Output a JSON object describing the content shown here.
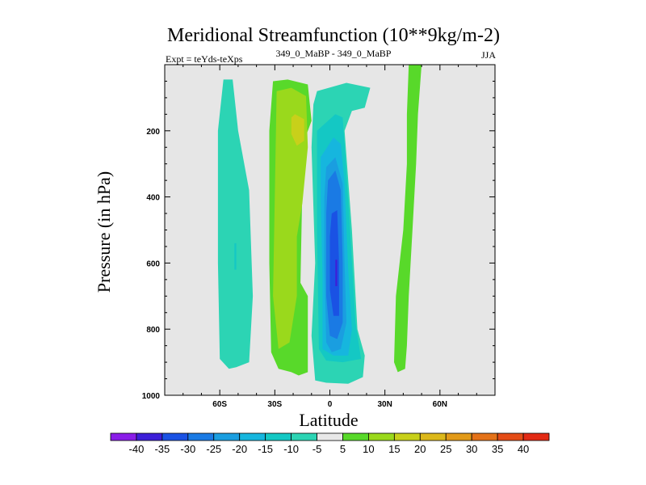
{
  "chart_data": {
    "type": "contour",
    "title": "Meridional Streamfunction (10**9kg/m-2)",
    "subtitle_left": "Expt = teYds-teXps",
    "subtitle_center": "349_0_MaBP - 349_0_MaBP",
    "subtitle_right": "JJA",
    "xlabel": "Latitude",
    "ylabel": "Pressure (in hPa)",
    "xlim": [
      -90,
      90
    ],
    "ylim": [
      1000,
      0
    ],
    "x_ticks": [
      {
        "value": -60,
        "label": "60S"
      },
      {
        "value": -30,
        "label": "30S"
      },
      {
        "value": 0,
        "label": "0"
      },
      {
        "value": 30,
        "label": "30N"
      },
      {
        "value": 60,
        "label": "60N"
      }
    ],
    "y_ticks": [
      {
        "value": 200,
        "label": "200"
      },
      {
        "value": 400,
        "label": "400"
      },
      {
        "value": 600,
        "label": "600"
      },
      {
        "value": 800,
        "label": "800"
      },
      {
        "value": 1000,
        "label": "1000"
      }
    ],
    "background_color": "#e6e6e6",
    "colorbar": {
      "levels": [
        "-40",
        "-35",
        "-30",
        "-25",
        "-20",
        "-15",
        "-10",
        "-5",
        "5",
        "10",
        "15",
        "20",
        "25",
        "30",
        "35",
        "40"
      ],
      "colors": [
        "#8a1de8",
        "#3d1fd8",
        "#1a52e4",
        "#1a7ae4",
        "#1a9ee0",
        "#16b6de",
        "#14c8c4",
        "#2cd4b4",
        "#e8e8e8",
        "#58d92a",
        "#9ad91c",
        "#c8d01a",
        "#dcb81a",
        "#e29a18",
        "#e47218",
        "#e44c16",
        "#e22a14"
      ]
    },
    "regions": [
      {
        "label": "southern weak negative cell",
        "color": "#2cd4b4",
        "polygon": [
          [
            -58,
            45
          ],
          [
            -53,
            45
          ],
          [
            -50,
            200
          ],
          [
            -44,
            380
          ],
          [
            -42,
            700
          ],
          [
            -44,
            900
          ],
          [
            -51,
            915
          ],
          [
            -55,
            920
          ],
          [
            -60,
            890
          ],
          [
            -61,
            600
          ],
          [
            -61,
            200
          ]
        ]
      },
      {
        "label": "southern negative inner",
        "color": "#14c8c4",
        "polygon": [
          [
            -52,
            540
          ],
          [
            -51,
            540
          ],
          [
            -51,
            620
          ],
          [
            -52,
            620
          ]
        ]
      },
      {
        "label": "southern positive cell",
        "color": "#58d92a",
        "polygon": [
          [
            -31,
            50
          ],
          [
            -23,
            45
          ],
          [
            -12,
            60
          ],
          [
            -10,
            170
          ],
          [
            -14,
            230
          ],
          [
            -15,
            370
          ],
          [
            -16,
            660
          ],
          [
            -12,
            700
          ],
          [
            -12,
            930
          ],
          [
            -17,
            940
          ],
          [
            -21,
            930
          ],
          [
            -28,
            920
          ],
          [
            -32,
            870
          ],
          [
            -33,
            600
          ],
          [
            -33,
            200
          ]
        ]
      },
      {
        "label": "southern positive inner",
        "color": "#9ad91c",
        "polygon": [
          [
            -29,
            80
          ],
          [
            -21,
            70
          ],
          [
            -13,
            95
          ],
          [
            -12,
            250
          ],
          [
            -15,
            420
          ],
          [
            -18,
            520
          ],
          [
            -18,
            700
          ],
          [
            -22,
            840
          ],
          [
            -28,
            860
          ],
          [
            -31,
            700
          ],
          [
            -30,
            400
          ]
        ]
      },
      {
        "label": "southern positive core",
        "color": "#c8d01a",
        "polygon": [
          [
            -19,
            150
          ],
          [
            -14,
            165
          ],
          [
            -14,
            230
          ],
          [
            -18,
            245
          ],
          [
            -21,
            210
          ],
          [
            -21,
            160
          ]
        ]
      },
      {
        "label": "equatorial negative cell",
        "color": "#2cd4b4",
        "polygon": [
          [
            -7,
            80
          ],
          [
            9,
            55
          ],
          [
            22,
            70
          ],
          [
            19,
            130
          ],
          [
            12,
            140
          ],
          [
            8,
            200
          ],
          [
            12,
            500
          ],
          [
            15,
            800
          ],
          [
            19,
            880
          ],
          [
            18,
            945
          ],
          [
            10,
            965
          ],
          [
            -2,
            962
          ],
          [
            -8,
            955
          ],
          [
            -10,
            820
          ],
          [
            -8,
            600
          ],
          [
            -10,
            250
          ],
          [
            -9,
            120
          ]
        ]
      },
      {
        "label": "equatorial negative -10",
        "color": "#14c8c4",
        "polygon": [
          [
            -7,
            200
          ],
          [
            3,
            150
          ],
          [
            7,
            160
          ],
          [
            8,
            240
          ],
          [
            11,
            500
          ],
          [
            14,
            780
          ],
          [
            17,
            890
          ],
          [
            7,
            900
          ],
          [
            -2,
            895
          ],
          [
            -6,
            860
          ],
          [
            -7,
            500
          ]
        ]
      },
      {
        "label": "equatorial negative -15",
        "color": "#16b6de",
        "polygon": [
          [
            -5,
            280
          ],
          [
            2,
            220
          ],
          [
            6,
            240
          ],
          [
            8,
            360
          ],
          [
            10,
            620
          ],
          [
            12,
            800
          ],
          [
            10,
            880
          ],
          [
            2,
            880
          ],
          [
            -4,
            860
          ],
          [
            -4,
            640
          ],
          [
            -5,
            400
          ]
        ]
      },
      {
        "label": "equatorial negative -20",
        "color": "#1a9ee0",
        "polygon": [
          [
            -2,
            310
          ],
          [
            3,
            280
          ],
          [
            7,
            360
          ],
          [
            8,
            600
          ],
          [
            9,
            780
          ],
          [
            6,
            860
          ],
          [
            1,
            870
          ],
          [
            -2,
            840
          ],
          [
            -3,
            600
          ],
          [
            -3,
            400
          ]
        ]
      },
      {
        "label": "equatorial negative -25",
        "color": "#1a7ae4",
        "polygon": [
          [
            -1,
            350
          ],
          [
            3,
            320
          ],
          [
            6,
            380
          ],
          [
            7,
            600
          ],
          [
            7,
            780
          ],
          [
            4,
            830
          ],
          [
            0,
            820
          ],
          [
            -2,
            700
          ],
          [
            -2,
            450
          ]
        ]
      },
      {
        "label": "equatorial negative -30",
        "color": "#1a52e4",
        "polygon": [
          [
            1,
            450
          ],
          [
            4,
            440
          ],
          [
            5,
            600
          ],
          [
            5,
            760
          ],
          [
            2,
            760
          ],
          [
            0,
            680
          ],
          [
            0,
            520
          ]
        ]
      },
      {
        "label": "equatorial negative -35",
        "color": "#3d1fd8",
        "polygon": [
          [
            3,
            590
          ],
          [
            4,
            590
          ],
          [
            4,
            670
          ],
          [
            3,
            670
          ]
        ]
      },
      {
        "label": "northern positive cell",
        "color": "#58d92a",
        "polygon": [
          [
            43,
            0
          ],
          [
            50,
            0
          ],
          [
            48,
            150
          ],
          [
            47,
            300
          ],
          [
            45,
            500
          ],
          [
            43,
            700
          ],
          [
            42,
            850
          ],
          [
            41,
            920
          ],
          [
            37,
            930
          ],
          [
            35,
            900
          ],
          [
            36,
            700
          ],
          [
            40,
            500
          ],
          [
            42,
            300
          ],
          [
            42,
            150
          ]
        ]
      }
    ]
  }
}
